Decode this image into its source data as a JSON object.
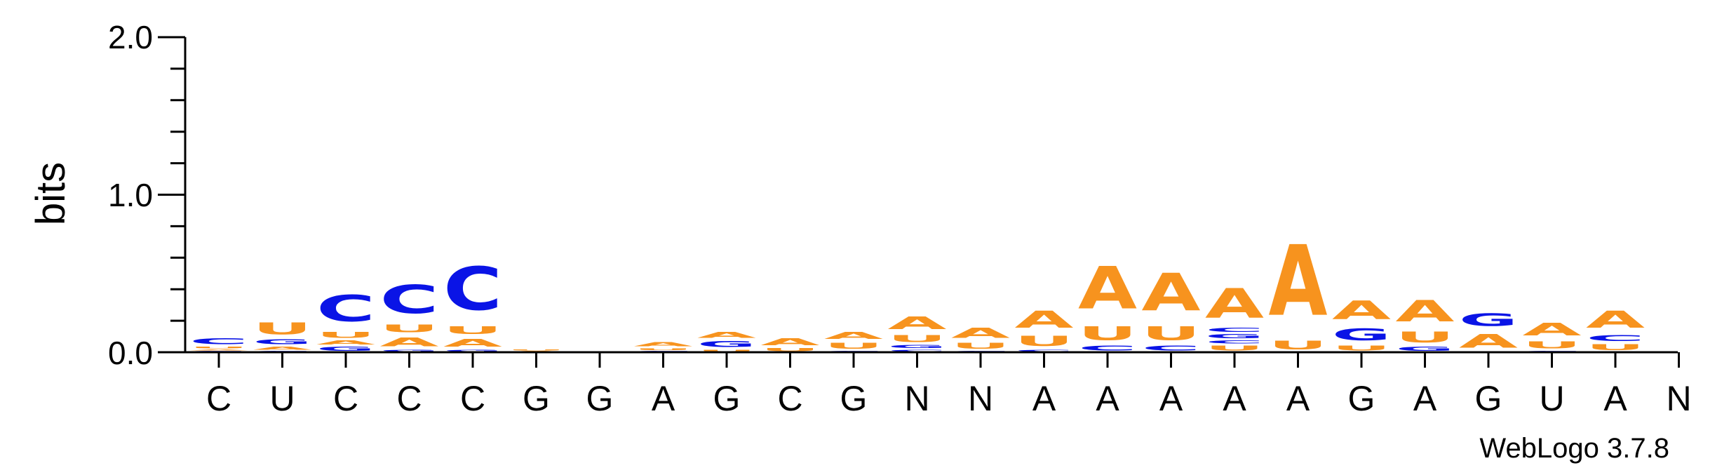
{
  "chart_data": {
    "type": "sequence-logo",
    "ylabel": "bits",
    "ylim": [
      0,
      2.0
    ],
    "yticks": [
      "0.0",
      "1.0",
      "2.0"
    ],
    "credit": "WebLogo 3.7.8",
    "positions": [
      "C",
      "U",
      "C",
      "C",
      "C",
      "G",
      "G",
      "A",
      "G",
      "C",
      "G",
      "N",
      "N",
      "A",
      "A",
      "A",
      "A",
      "A",
      "G",
      "A",
      "G",
      "U",
      "A",
      "N"
    ],
    "colors": {
      "A": "#F7931E",
      "U": "#F7931E",
      "C": "#0A14E6",
      "G": "#0A14E6"
    },
    "stacks": [
      [
        [
          "G",
          0.01
        ],
        [
          "A",
          0.01
        ],
        [
          "U",
          0.02
        ],
        [
          "C",
          0.06
        ]
      ],
      [
        [
          "C",
          0.01
        ],
        [
          "A",
          0.03
        ],
        [
          "G",
          0.05
        ],
        [
          "U",
          0.12
        ]
      ],
      [
        [
          "G",
          0.04
        ],
        [
          "A",
          0.04
        ],
        [
          "U",
          0.06
        ],
        [
          "C",
          0.27
        ]
      ],
      [
        [
          "G",
          0.02
        ],
        [
          "A",
          0.09
        ],
        [
          "U",
          0.08
        ],
        [
          "C",
          0.29
        ]
      ],
      [
        [
          "G",
          0.02
        ],
        [
          "A",
          0.08
        ],
        [
          "U",
          0.08
        ],
        [
          "C",
          0.44
        ]
      ],
      [
        [
          "A",
          0.01
        ],
        [
          "U",
          0.01
        ]
      ],
      [
        [
          "C",
          0.003
        ]
      ],
      [
        [
          "C",
          0.01
        ],
        [
          "U",
          0.02
        ],
        [
          "A",
          0.04
        ]
      ],
      [
        [
          "U",
          0.02
        ],
        [
          "G",
          0.06
        ],
        [
          "A",
          0.06
        ]
      ],
      [
        [
          "U",
          0.03
        ],
        [
          "A",
          0.07
        ]
      ],
      [
        [
          "C",
          0.01
        ],
        [
          "U",
          0.06
        ],
        [
          "A",
          0.07
        ]
      ],
      [
        [
          "C",
          0.02
        ],
        [
          "G",
          0.03
        ],
        [
          "U",
          0.07
        ],
        [
          "A",
          0.13
        ]
      ],
      [
        [
          "C",
          0.01
        ],
        [
          "U",
          0.06
        ],
        [
          "A",
          0.1
        ]
      ],
      [
        [
          "C",
          0.02
        ],
        [
          "U",
          0.1
        ],
        [
          "A",
          0.17
        ]
      ],
      [
        [
          "C",
          0.05
        ],
        [
          "U",
          0.14
        ],
        [
          "A",
          0.43
        ]
      ],
      [
        [
          "C",
          0.05
        ],
        [
          "U",
          0.14
        ],
        [
          "A",
          0.38
        ]
      ],
      [
        [
          "U",
          0.05
        ],
        [
          "C",
          0.03
        ],
        [
          "G",
          0.04
        ],
        [
          "C",
          0.04
        ],
        [
          "A",
          0.3
        ]
      ],
      [
        [
          "U",
          0.09
        ],
        [
          "A",
          0.72
        ]
      ],
      [
        [
          "U",
          0.05
        ],
        [
          "G",
          0.12
        ],
        [
          "A",
          0.19
        ]
      ],
      [
        [
          "G",
          0.04
        ],
        [
          "U",
          0.11
        ],
        [
          "A",
          0.22
        ]
      ],
      [
        [
          "A",
          0.14
        ],
        [
          "G",
          0.13
        ]
      ],
      [
        [
          "C",
          0.01
        ],
        [
          "U",
          0.07
        ],
        [
          "A",
          0.13
        ]
      ],
      [
        [
          "U",
          0.06
        ],
        [
          "C",
          0.06
        ],
        [
          "A",
          0.17
        ]
      ],
      []
    ]
  }
}
